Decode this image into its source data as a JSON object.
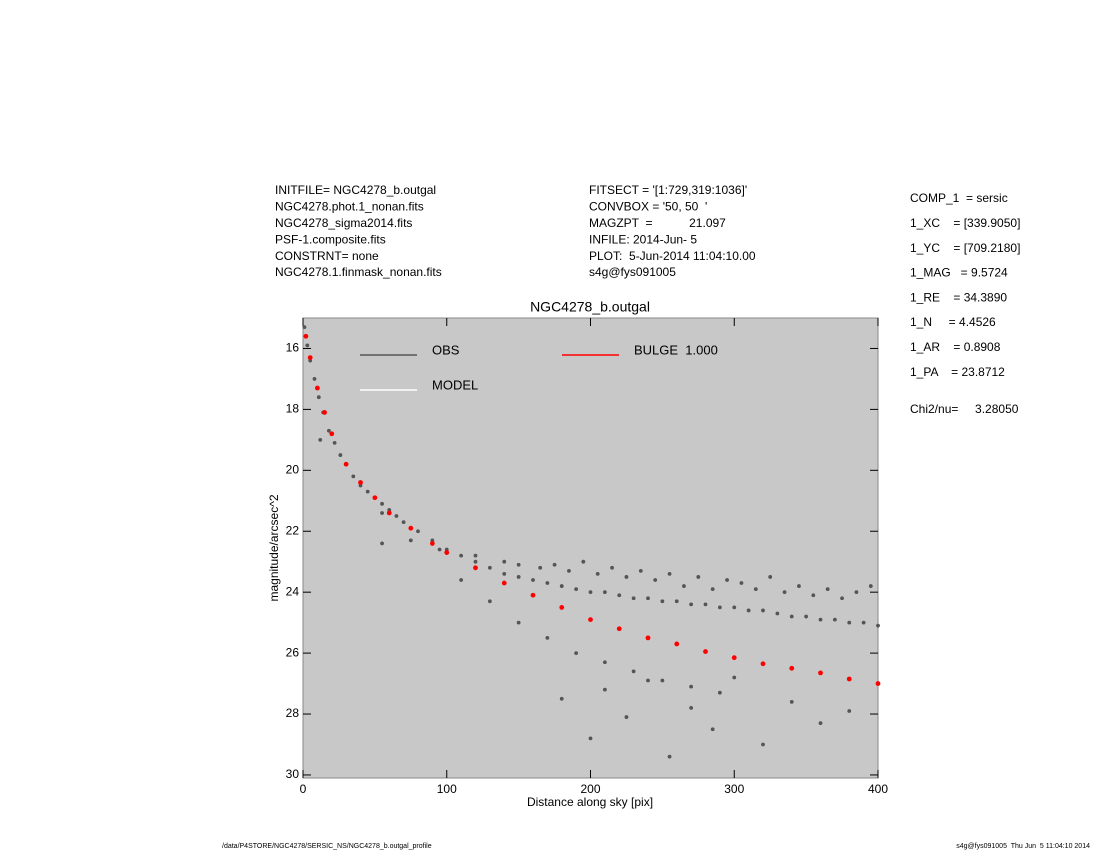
{
  "header": {
    "left": [
      "INITFILE= NGC4278_b.outgal",
      "NGC4278.phot.1_nonan.fits",
      "NGC4278_sigma2014.fits",
      "PSF-1.composite.fits",
      "CONSTRNT= none",
      "NGC4278.1.finmask_nonan.fits"
    ],
    "middle": [
      "FITSECT = '[1:729,319:1036]'",
      "CONVBOX = '50, 50  '",
      "MAGZPT  =           21.097",
      "INFILE: 2014-Jun- 5",
      "PLOT:  5-Jun-2014 11:04:10.00",
      "s4g@fys091005"
    ],
    "right": [
      "COMP_1  = sersic",
      "1_XC    = [339.9050]",
      "1_YC    = [709.2180]",
      "1_MAG   = 9.5724",
      "1_RE    = 34.3890",
      "1_N     = 4.4526",
      "1_AR    = 0.8908",
      "1_PA    = 23.8712"
    ],
    "chi2": "Chi2/nu=     3.28050"
  },
  "footer": {
    "left": "/data/P4STORE/NGC4278/SERSIC_NS/NGC4278_b.outgal_profile",
    "right": "s4g@fys091005  Thu Jun  5 11:04:10 2014"
  },
  "chart_data": {
    "type": "scatter",
    "title": "NGC4278_b.outgal",
    "x_label": "Distance along sky [pix]",
    "y_label": "magnitude/arcsec^2",
    "xlim": [
      0,
      400
    ],
    "xticks": [
      0,
      100,
      200,
      300,
      400
    ],
    "ylim": [
      15,
      30.1
    ],
    "yticks": [
      16,
      18,
      20,
      22,
      24,
      26,
      28,
      30
    ],
    "y_inverted": true,
    "background": "#c8c8c8",
    "series": [
      {
        "name": "OBS",
        "color": "#555555",
        "x": [
          1,
          3,
          5,
          8,
          11,
          14,
          18,
          22,
          26,
          30,
          35,
          40,
          45,
          50,
          55,
          60,
          65,
          70,
          80,
          90,
          100,
          110,
          120,
          130,
          140,
          150,
          160,
          170,
          180,
          190,
          200,
          210,
          220,
          230,
          240,
          250,
          260,
          270,
          280,
          290,
          300,
          310,
          320,
          330,
          340,
          350,
          360,
          370,
          380,
          390,
          400,
          55,
          75,
          95,
          120,
          140,
          150,
          165,
          175,
          185,
          195,
          205,
          215,
          225,
          235,
          245,
          255,
          265,
          275,
          285,
          295,
          305,
          315,
          325,
          335,
          345,
          355,
          365,
          375,
          385,
          395,
          180,
          200,
          210,
          225,
          240,
          255,
          270,
          285,
          300,
          320,
          340,
          360,
          380,
          12,
          55,
          110,
          130,
          150,
          170,
          190,
          210,
          230,
          250,
          270,
          290
        ],
        "values": [
          15.3,
          15.9,
          16.4,
          17.0,
          17.6,
          18.1,
          18.7,
          19.1,
          19.5,
          19.8,
          20.2,
          20.5,
          20.7,
          20.9,
          21.1,
          21.3,
          21.5,
          21.7,
          22.0,
          22.3,
          22.6,
          22.8,
          23.0,
          23.2,
          23.4,
          23.5,
          23.6,
          23.7,
          23.8,
          23.9,
          24.0,
          24.0,
          24.1,
          24.2,
          24.2,
          24.3,
          24.3,
          24.4,
          24.4,
          24.5,
          24.5,
          24.6,
          24.6,
          24.7,
          24.8,
          24.8,
          24.9,
          24.9,
          25.0,
          25.0,
          25.1,
          21.4,
          22.3,
          22.6,
          22.8,
          23.0,
          23.1,
          23.2,
          23.1,
          23.3,
          23.0,
          23.4,
          23.2,
          23.5,
          23.3,
          23.6,
          23.4,
          23.8,
          23.5,
          23.9,
          23.6,
          23.7,
          23.9,
          23.5,
          24.0,
          23.8,
          24.1,
          23.9,
          24.2,
          24.0,
          23.8,
          27.5,
          28.8,
          27.2,
          28.1,
          26.9,
          29.4,
          27.8,
          28.5,
          26.8,
          29.0,
          27.6,
          28.3,
          27.9,
          19.0,
          22.4,
          23.6,
          24.3,
          25.0,
          25.5,
          26.0,
          26.3,
          26.6,
          26.9,
          27.1,
          27.3
        ]
      },
      {
        "name": "MODEL",
        "color": "#ffffff",
        "x": [],
        "values": []
      },
      {
        "name": "BULGE  1.000",
        "color": "#ff0000",
        "x": [
          2,
          5,
          10,
          15,
          20,
          30,
          40,
          50,
          60,
          75,
          90,
          100,
          120,
          140,
          160,
          180,
          200,
          220,
          240,
          260,
          280,
          300,
          320,
          340,
          360,
          380,
          400
        ],
        "values": [
          15.6,
          16.3,
          17.3,
          18.1,
          18.8,
          19.8,
          20.4,
          20.9,
          21.4,
          21.9,
          22.4,
          22.7,
          23.2,
          23.7,
          24.1,
          24.5,
          24.9,
          25.2,
          25.5,
          25.7,
          25.95,
          26.15,
          26.35,
          26.5,
          26.65,
          26.85,
          27.0
        ]
      }
    ]
  }
}
